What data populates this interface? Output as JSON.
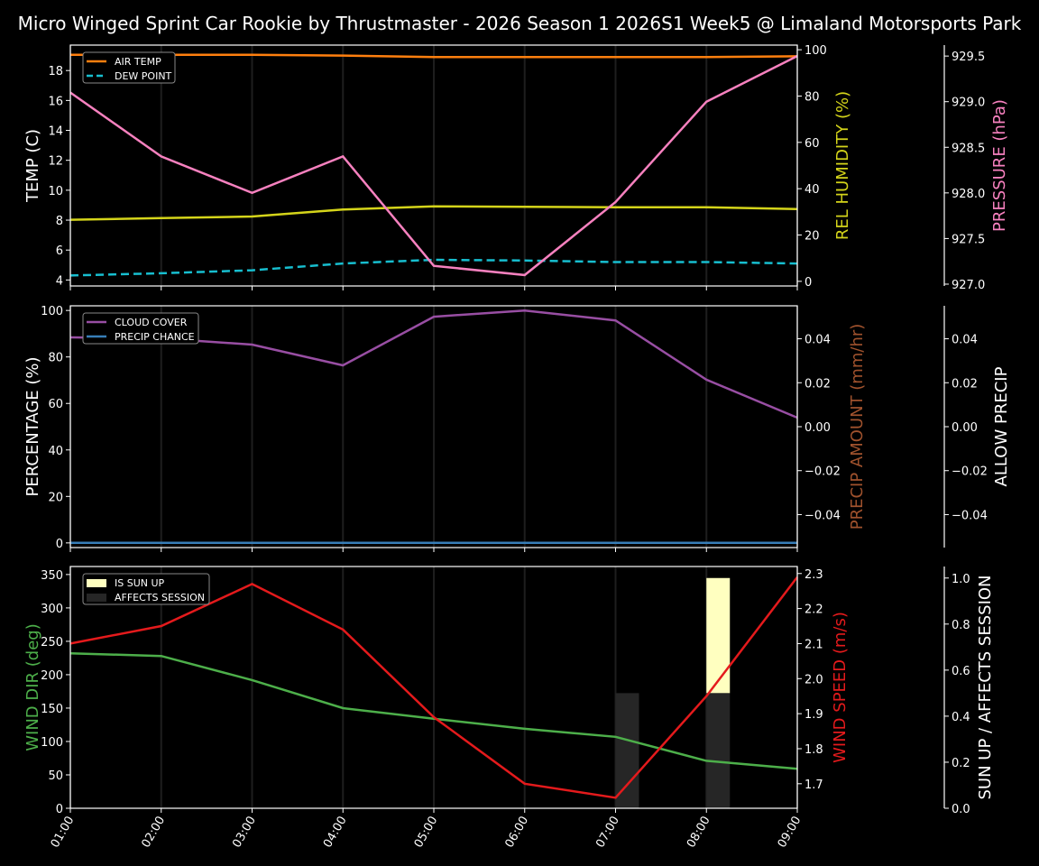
{
  "title": "Micro Winged Sprint Car Rookie by Thrustmaster - 2026 Season 1 2026S1 Week5 @ Limaland Motorsports Park",
  "chart_data": [
    {
      "type": "line",
      "panel": "temperature-humidity-pressure",
      "x": [
        "01:00",
        "02:00",
        "03:00",
        "04:00",
        "05:00",
        "06:00",
        "07:00",
        "08:00",
        "09:00"
      ],
      "series": [
        {
          "name": "AIR TEMP",
          "axis": "TEMP (C)",
          "color": "#ff7f0e",
          "dash": false,
          "values": [
            19.05,
            19.05,
            19.05,
            19.0,
            18.9,
            18.9,
            18.9,
            18.9,
            18.95
          ]
        },
        {
          "name": "DEW POINT",
          "axis": "TEMP (C)",
          "color": "#17becf",
          "dash": true,
          "values": [
            4.3,
            4.45,
            4.65,
            5.1,
            5.35,
            5.3,
            5.2,
            5.2,
            5.1
          ]
        },
        {
          "name": "REL HUMIDITY",
          "axis": "REL HUMIDITY (%)",
          "color": "#d4d41a",
          "dash": false,
          "values": [
            26.6,
            27.3,
            28.0,
            31.0,
            32.4,
            32.2,
            32.0,
            32.0,
            31.2
          ]
        },
        {
          "name": "PRESSURE",
          "axis": "PRESSURE (hPa)",
          "color": "#f781bf",
          "dash": false,
          "values": [
            929.1,
            928.4,
            928.0,
            928.4,
            927.2,
            927.1,
            927.9,
            929.0,
            929.5
          ]
        }
      ],
      "axes": {
        "left": {
          "label": "TEMP (C)",
          "color": "#ffffff",
          "ylim": [
            3.6,
            19.7
          ],
          "ticks": [
            4,
            6,
            8,
            10,
            12,
            14,
            16,
            18
          ]
        },
        "right1": {
          "label": "REL HUMIDITY (%)",
          "color": "#d4d41a",
          "ylim": [
            -2,
            102
          ],
          "ticks": [
            0,
            20,
            40,
            60,
            80,
            100
          ]
        },
        "right2": {
          "label": "PRESSURE (hPa)",
          "color": "#f781bf",
          "ylim": [
            926.98,
            929.62
          ],
          "ticks": [
            "927.0",
            "927.5",
            "928.0",
            "928.5",
            "929.0",
            "929.5"
          ]
        }
      },
      "legend": {
        "position": "upper left",
        "entries": [
          "AIR TEMP",
          "DEW POINT"
        ]
      },
      "grid": "vertical"
    },
    {
      "type": "line",
      "panel": "cloud-precip",
      "x": [
        "01:00",
        "02:00",
        "03:00",
        "04:00",
        "05:00",
        "06:00",
        "07:00",
        "08:00",
        "09:00"
      ],
      "series": [
        {
          "name": "CLOUD COVER",
          "axis": "PERCENTAGE (%)",
          "color": "#984ea3",
          "values": [
            88.4,
            88.0,
            85.3,
            76.4,
            97.3,
            100.0,
            95.7,
            70.2,
            53.9
          ]
        },
        {
          "name": "PRECIP CHANCE",
          "axis": "PERCENTAGE (%)",
          "color": "#377eb8",
          "values": [
            0,
            0,
            0,
            0,
            0,
            0,
            0,
            0,
            0
          ]
        },
        {
          "name": "PRECIP AMOUNT",
          "axis": "PRECIP AMOUNT (mm/hr)",
          "color": "#a0522d",
          "values": [
            0,
            0,
            0,
            0,
            0,
            0,
            0,
            0,
            0
          ]
        },
        {
          "name": "ALLOW PRECIP",
          "axis": "ALLOW PRECIP",
          "color": "#ffffff",
          "values": [
            0,
            0,
            0,
            0,
            0,
            0,
            0,
            0,
            0
          ]
        }
      ],
      "axes": {
        "left": {
          "label": "PERCENTAGE (%)",
          "color": "#ffffff",
          "ylim": [
            -2,
            102
          ],
          "ticks": [
            0,
            20,
            40,
            60,
            80,
            100
          ]
        },
        "right1": {
          "label": "PRECIP AMOUNT (mm/hr)",
          "color": "#a0522d",
          "ylim": [
            -0.055,
            0.055
          ],
          "ticks": [
            "−0.04",
            "−0.02",
            "0.00",
            "0.02",
            "0.04"
          ]
        },
        "right2": {
          "label": "ALLOW PRECIP",
          "color": "#ffffff",
          "ylim": [
            -0.055,
            0.055
          ],
          "ticks": [
            "−0.04",
            "−0.02",
            "0.00",
            "0.02",
            "0.04"
          ]
        }
      },
      "legend": {
        "position": "upper left",
        "entries": [
          "CLOUD COVER",
          "PRECIP CHANCE"
        ]
      },
      "grid": "vertical"
    },
    {
      "type": "line",
      "panel": "wind-sun",
      "x": [
        "01:00",
        "02:00",
        "03:00",
        "04:00",
        "05:00",
        "06:00",
        "07:00",
        "08:00",
        "09:00"
      ],
      "series": [
        {
          "name": "WIND DIR",
          "axis": "WIND DIR (deg)",
          "color": "#4daf4a",
          "values": [
            232,
            228,
            192,
            150,
            134,
            119,
            107,
            71,
            59
          ]
        },
        {
          "name": "WIND SPEED",
          "axis": "WIND SPEED (m/s)",
          "color": "#e41a1c",
          "values": [
            2.1,
            2.15,
            2.27,
            2.14,
            1.89,
            1.7,
            1.66,
            1.95,
            2.29
          ]
        },
        {
          "name": "IS SUN UP",
          "type": "bar",
          "color": "#ffffc0",
          "values": [
            0,
            0,
            0,
            0,
            0,
            0,
            0,
            1,
            0
          ]
        },
        {
          "name": "AFFECTS SESSION",
          "type": "bar",
          "color": "#262626",
          "values": [
            0,
            0,
            0,
            0,
            0,
            0,
            0.5,
            0.5,
            0
          ]
        }
      ],
      "axes": {
        "left": {
          "label": "WIND DIR (deg)",
          "color": "#4daf4a",
          "ylim": [
            0,
            362
          ],
          "ticks": [
            0,
            50,
            100,
            150,
            200,
            250,
            300,
            350
          ]
        },
        "right1": {
          "label": "WIND SPEED (m/s)",
          "color": "#e41a1c",
          "ylim": [
            1.63,
            2.32
          ],
          "ticks": [
            "1.7",
            "1.8",
            "1.9",
            "2.0",
            "2.1",
            "2.2",
            "2.3"
          ]
        },
        "right2": {
          "label": "SUN UP / AFFECTS SESSION",
          "color": "#ffffff",
          "ylim": [
            0,
            1.05
          ],
          "ticks": [
            "0.0",
            "0.2",
            "0.4",
            "0.6",
            "0.8",
            "1.0"
          ]
        }
      },
      "legend": {
        "position": "upper left",
        "entries": [
          "IS SUN UP",
          "AFFECTS SESSION"
        ]
      },
      "grid": "vertical",
      "xlabel_rotation": 60
    }
  ]
}
